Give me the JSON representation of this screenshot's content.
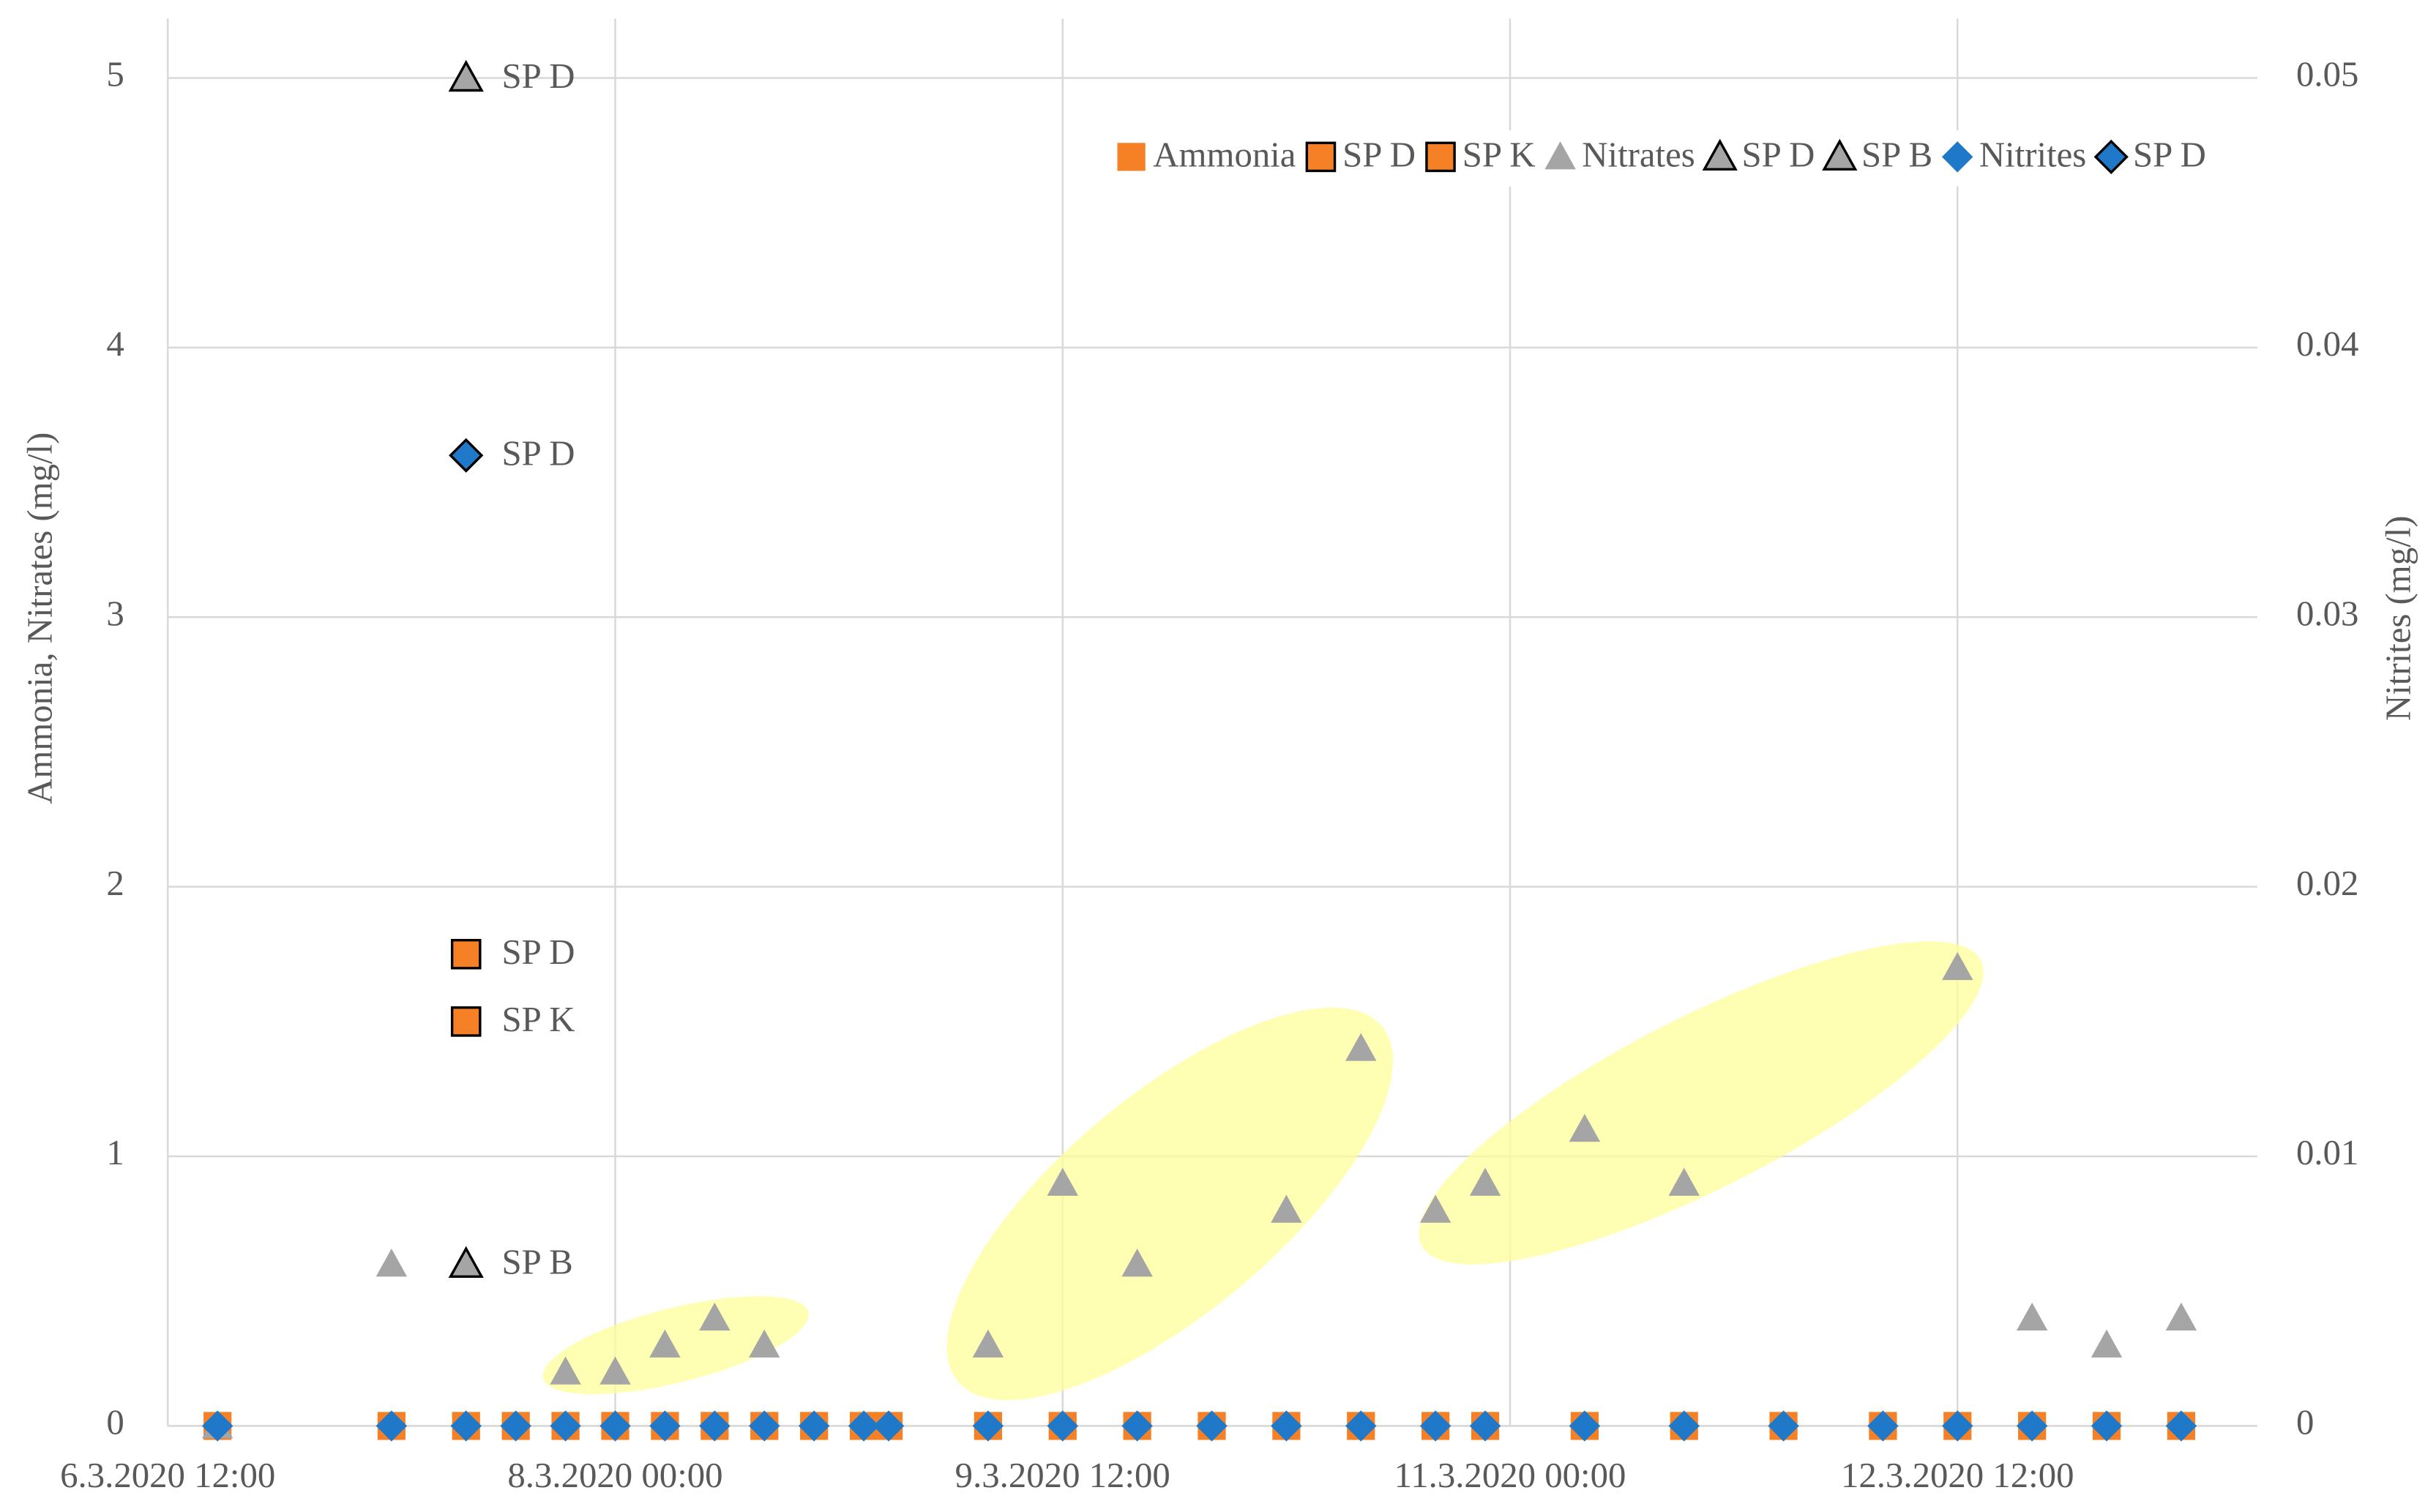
{
  "chart_data": {
    "type": "scatter",
    "ylabel": "Ammonia, Nitrates (mg/l)",
    "y2label": "Nitrites (mg/l)",
    "xlim": [
      "6.3.2020 12:00",
      "13.3.2020 12:00"
    ],
    "xticks": [
      "6.3.2020 12:00",
      "8.3.2020 00:00",
      "9.3.2020 12:00",
      "11.3.2020 00:00",
      "12.3.2020 12:00"
    ],
    "ylim": [
      0,
      5.22
    ],
    "yticks": [
      0,
      1,
      2,
      3,
      4,
      5
    ],
    "y2lim": [
      0,
      0.0522
    ],
    "y2ticks": [
      0,
      0.01,
      0.02,
      0.03,
      0.04,
      0.05
    ],
    "grid": true,
    "legend": "upper right",
    "x": [
      "6.3.2020 16:00",
      "7.3.2020 06:00",
      "7.3.2020 12:00",
      "7.3.2020 16:00",
      "7.3.2020 20:00",
      "8.3.2020 00:00",
      "8.3.2020 04:00",
      "8.3.2020 08:00",
      "8.3.2020 12:00",
      "8.3.2020 16:00",
      "8.3.2020 20:00",
      "8.3.2020 22:00",
      "9.3.2020 06:00",
      "9.3.2020 12:00",
      "9.3.2020 18:00",
      "10.3.2020 00:00",
      "10.3.2020 06:00",
      "10.3.2020 12:00",
      "10.3.2020 18:00",
      "10.3.2020 22:00",
      "11.3.2020 06:00",
      "11.3.2020 14:00",
      "11.3.2020 22:00",
      "12.3.2020 06:00",
      "12.3.2020 12:00",
      "12.3.2020 18:00",
      "13.3.2020 00:00",
      "13.3.2020 06:00"
    ],
    "series": [
      {
        "name": "Ammonia",
        "marker": "square",
        "color": "#f58025",
        "values": [
          0,
          0,
          0,
          0,
          0,
          0,
          0,
          0,
          0,
          0,
          0,
          0,
          0,
          0,
          0,
          0,
          0,
          0,
          0,
          0,
          0,
          0,
          0,
          0,
          0,
          0,
          0,
          0
        ]
      },
      {
        "name": "SP D",
        "marker": "square",
        "color": "#f58025",
        "edgecolor": "#000000",
        "data_labels": true,
        "x": [
          "7.3.2020 12:00"
        ],
        "values": [
          1.75
        ]
      },
      {
        "name": "SP K",
        "marker": "square",
        "color": "#f58025",
        "edgecolor": "#000000",
        "data_labels": true,
        "x": [
          "7.3.2020 12:00"
        ],
        "values": [
          1.5
        ]
      },
      {
        "name": "Nitrates",
        "marker": "triangle",
        "color": "#a5a5a5",
        "values": [
          0,
          0.6,
          null,
          null,
          0.2,
          0.2,
          0.3,
          0.4,
          0.3,
          null,
          null,
          null,
          0.3,
          0.9,
          0.6,
          null,
          0.8,
          1.4,
          0.8,
          0.9,
          1.1,
          0.9,
          null,
          null,
          1.7,
          0.4,
          0.3,
          0.4
        ]
      },
      {
        "name": "SP D",
        "marker": "triangle",
        "color": "#a5a5a5",
        "edgecolor": "#000000",
        "data_labels": true,
        "x": [
          "7.3.2020 12:00"
        ],
        "values": [
          5
        ]
      },
      {
        "name": "SP B",
        "marker": "triangle",
        "color": "#a5a5a5",
        "edgecolor": "#000000",
        "data_labels": true,
        "x": [
          "7.3.2020 12:00"
        ],
        "values": [
          0.6
        ]
      },
      {
        "name": "Nitrites",
        "marker": "diamond",
        "color": "#1f78c8",
        "axis": "y2",
        "values": [
          0,
          0,
          0,
          0,
          0,
          0,
          0,
          0,
          0,
          0,
          0,
          0,
          0,
          0,
          0,
          0,
          0,
          0,
          0,
          0,
          0,
          0,
          0,
          0,
          0,
          0,
          0,
          0
        ]
      },
      {
        "name": "SP D",
        "marker": "diamond",
        "color": "#1f78c8",
        "edgecolor": "#000000",
        "axis": "y2",
        "data_labels": true,
        "x": [
          "7.3.2020 12:00"
        ],
        "values": [
          0.036
        ]
      }
    ]
  }
}
